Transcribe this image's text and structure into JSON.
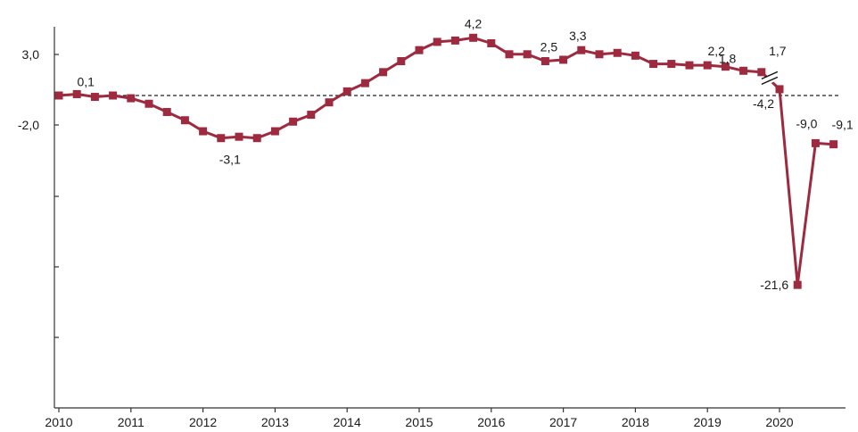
{
  "chart_data": {
    "type": "line",
    "title": "",
    "xlabel": "",
    "ylabel": "",
    "colors": {
      "series": "#9e2a40",
      "axis": "#333333",
      "zero_line": "#222222"
    },
    "grid": false,
    "legend": "none",
    "reference_line": {
      "style": "dashed",
      "y": 0
    },
    "axis_break": {
      "between": [
        "2019 Q4",
        "2020 Q1"
      ]
    },
    "x_ticks": [
      "2010",
      "2011",
      "2012",
      "2013",
      "2014",
      "2015",
      "2016",
      "2017",
      "2018",
      "2019",
      "2020"
    ],
    "y_ticks": [
      "3,0",
      "-2,0",
      "",
      "",
      ""
    ],
    "series": [
      {
        "values": [
          {
            "x": "2010 Q1",
            "y": 0.0
          },
          {
            "x": "2010 Q2",
            "y": 0.1,
            "label": "0,1"
          },
          {
            "x": "2010 Q3",
            "y": -0.1
          },
          {
            "x": "2010 Q4",
            "y": 0.0
          },
          {
            "x": "2011 Q1",
            "y": -0.2
          },
          {
            "x": "2011 Q2",
            "y": -0.6
          },
          {
            "x": "2011 Q3",
            "y": -1.2
          },
          {
            "x": "2011 Q4",
            "y": -1.8
          },
          {
            "x": "2012 Q1",
            "y": -2.6
          },
          {
            "x": "2012 Q2",
            "y": -3.1,
            "label": "-3,1"
          },
          {
            "x": "2012 Q3",
            "y": -3.0
          },
          {
            "x": "2012 Q4",
            "y": -3.1
          },
          {
            "x": "2013 Q1",
            "y": -2.6
          },
          {
            "x": "2013 Q2",
            "y": -1.9
          },
          {
            "x": "2013 Q3",
            "y": -1.4
          },
          {
            "x": "2013 Q4",
            "y": -0.5
          },
          {
            "x": "2014 Q1",
            "y": 0.3
          },
          {
            "x": "2014 Q2",
            "y": 0.9
          },
          {
            "x": "2014 Q3",
            "y": 1.7
          },
          {
            "x": "2014 Q4",
            "y": 2.5
          },
          {
            "x": "2015 Q1",
            "y": 3.3
          },
          {
            "x": "2015 Q2",
            "y": 3.9
          },
          {
            "x": "2015 Q3",
            "y": 4.0
          },
          {
            "x": "2015 Q4",
            "y": 4.2,
            "label": "4,2"
          },
          {
            "x": "2016 Q1",
            "y": 3.8
          },
          {
            "x": "2016 Q2",
            "y": 3.0
          },
          {
            "x": "2016 Q3",
            "y": 3.0
          },
          {
            "x": "2016 Q4",
            "y": 2.5,
            "label": "2,5"
          },
          {
            "x": "2017 Q1",
            "y": 2.6
          },
          {
            "x": "2017 Q2",
            "y": 3.3,
            "label": "3,3"
          },
          {
            "x": "2017 Q3",
            "y": 3.0
          },
          {
            "x": "2017 Q4",
            "y": 3.1
          },
          {
            "x": "2018 Q1",
            "y": 2.9
          },
          {
            "x": "2018 Q2",
            "y": 2.3
          },
          {
            "x": "2018 Q3",
            "y": 2.3
          },
          {
            "x": "2018 Q4",
            "y": 2.2
          },
          {
            "x": "2019 Q1",
            "y": 2.2,
            "label": "2,2"
          },
          {
            "x": "2019 Q2",
            "y": 2.1
          },
          {
            "x": "2019 Q3",
            "y": 1.8,
            "label": "1,8"
          },
          {
            "x": "2019 Q4",
            "y": 1.7,
            "label": "1,7"
          },
          {
            "x": "2020 Q1",
            "y": -4.2,
            "label": "-4,2"
          },
          {
            "x": "2020 Q2",
            "y": -21.6,
            "label": "-21,6"
          },
          {
            "x": "2020 Q3",
            "y": -9.0,
            "label": "-9,0"
          },
          {
            "x": "2020 Q4",
            "y": -9.1,
            "label": "-9,1"
          }
        ]
      }
    ]
  }
}
